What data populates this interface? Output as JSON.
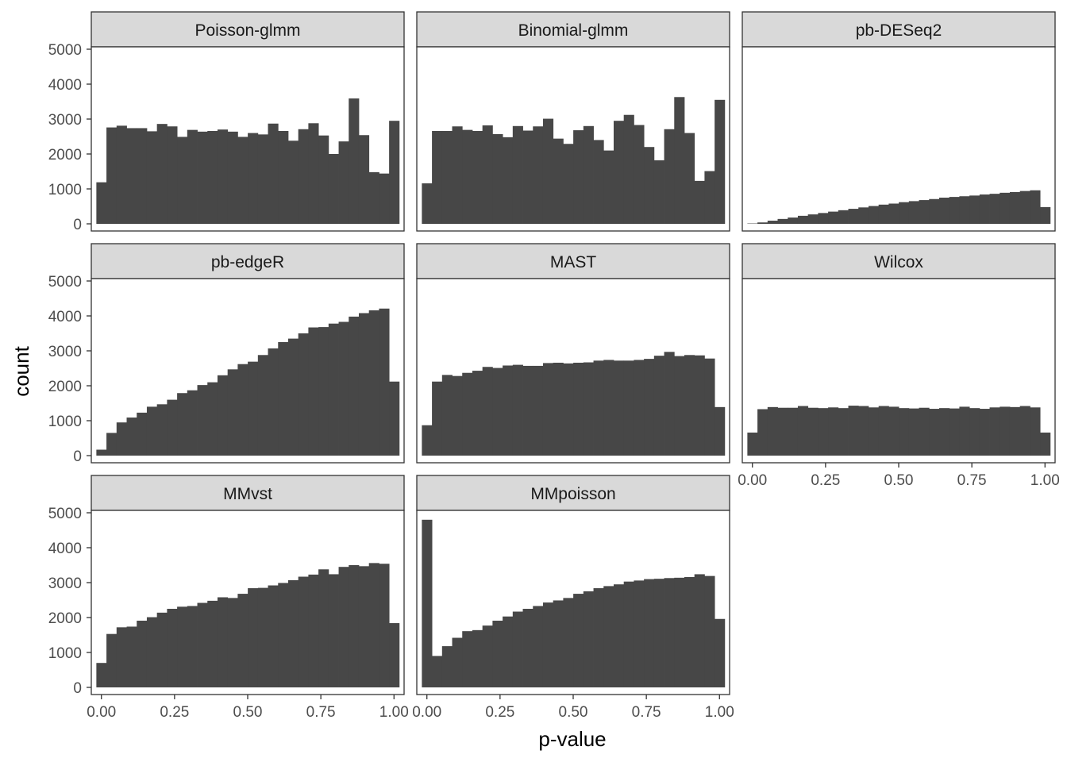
{
  "chart_data": {
    "type": "bar",
    "subtype": "faceted-histogram",
    "xlabel": "p-value",
    "ylabel": "count",
    "xlim": [
      -0.0345,
      1.0345
    ],
    "ylim": [
      0,
      5000
    ],
    "x_ticks": [
      "0.00",
      "0.25",
      "0.50",
      "0.75",
      "1.00"
    ],
    "x_tick_values": [
      0,
      0.25,
      0.5,
      0.75,
      1.0
    ],
    "y_ticks": [
      "0",
      "1000",
      "2000",
      "3000",
      "4000",
      "5000"
    ],
    "y_tick_values": [
      0,
      1000,
      2000,
      3000,
      4000,
      5000
    ],
    "bins": 30,
    "bin_start": -0.0172,
    "bin_width": 0.0345,
    "bar_color": "#474747",
    "strip_color": "#d9d9d9",
    "facets": [
      {
        "name": "Poisson-glmm",
        "values": [
          1190,
          2760,
          2810,
          2740,
          2740,
          2650,
          2860,
          2790,
          2490,
          2690,
          2640,
          2660,
          2700,
          2640,
          2490,
          2600,
          2560,
          2870,
          2660,
          2380,
          2710,
          2880,
          2530,
          2000,
          2360,
          3590,
          2540,
          1480,
          1440,
          2950
        ]
      },
      {
        "name": "Binomial-glmm",
        "values": [
          1160,
          2660,
          2660,
          2790,
          2690,
          2660,
          2820,
          2570,
          2480,
          2800,
          2670,
          2790,
          3010,
          2440,
          2290,
          2680,
          2800,
          2400,
          2100,
          2950,
          3120,
          2830,
          2200,
          1820,
          2710,
          3630,
          2600,
          1230,
          1510,
          3550
        ]
      },
      {
        "name": "pb-DESeq2",
        "values": [
          10,
          40,
          90,
          140,
          180,
          230,
          270,
          310,
          350,
          390,
          430,
          470,
          510,
          550,
          580,
          620,
          650,
          680,
          710,
          750,
          770,
          790,
          810,
          840,
          860,
          890,
          910,
          940,
          960,
          480
        ]
      },
      {
        "name": "pb-edgeR",
        "values": [
          170,
          650,
          950,
          1090,
          1230,
          1400,
          1470,
          1600,
          1790,
          1870,
          2020,
          2100,
          2300,
          2470,
          2620,
          2690,
          2880,
          3070,
          3250,
          3350,
          3500,
          3670,
          3680,
          3780,
          3830,
          3980,
          4080,
          4160,
          4210,
          2120
        ]
      },
      {
        "name": "MAST",
        "values": [
          870,
          2120,
          2310,
          2280,
          2370,
          2430,
          2540,
          2510,
          2580,
          2600,
          2570,
          2570,
          2650,
          2660,
          2640,
          2660,
          2670,
          2720,
          2740,
          2720,
          2720,
          2740,
          2770,
          2860,
          2970,
          2850,
          2880,
          2870,
          2780,
          1390
        ]
      },
      {
        "name": "Wilcox",
        "values": [
          660,
          1330,
          1390,
          1370,
          1370,
          1420,
          1370,
          1360,
          1380,
          1360,
          1430,
          1420,
          1380,
          1420,
          1400,
          1360,
          1350,
          1370,
          1340,
          1360,
          1350,
          1400,
          1360,
          1340,
          1380,
          1400,
          1390,
          1420,
          1380,
          660
        ]
      },
      {
        "name": "MMvst",
        "values": [
          700,
          1530,
          1720,
          1740,
          1910,
          2010,
          2140,
          2250,
          2310,
          2330,
          2420,
          2480,
          2580,
          2560,
          2680,
          2840,
          2850,
          2920,
          2990,
          3070,
          3170,
          3230,
          3380,
          3240,
          3450,
          3500,
          3470,
          3560,
          3540,
          1840
        ]
      },
      {
        "name": "MMpoisson",
        "values": [
          4800,
          900,
          1180,
          1420,
          1610,
          1640,
          1770,
          1910,
          2030,
          2170,
          2250,
          2330,
          2430,
          2490,
          2560,
          2680,
          2750,
          2840,
          2900,
          2950,
          3030,
          3060,
          3100,
          3110,
          3130,
          3140,
          3160,
          3240,
          3190,
          1960
        ]
      }
    ]
  }
}
